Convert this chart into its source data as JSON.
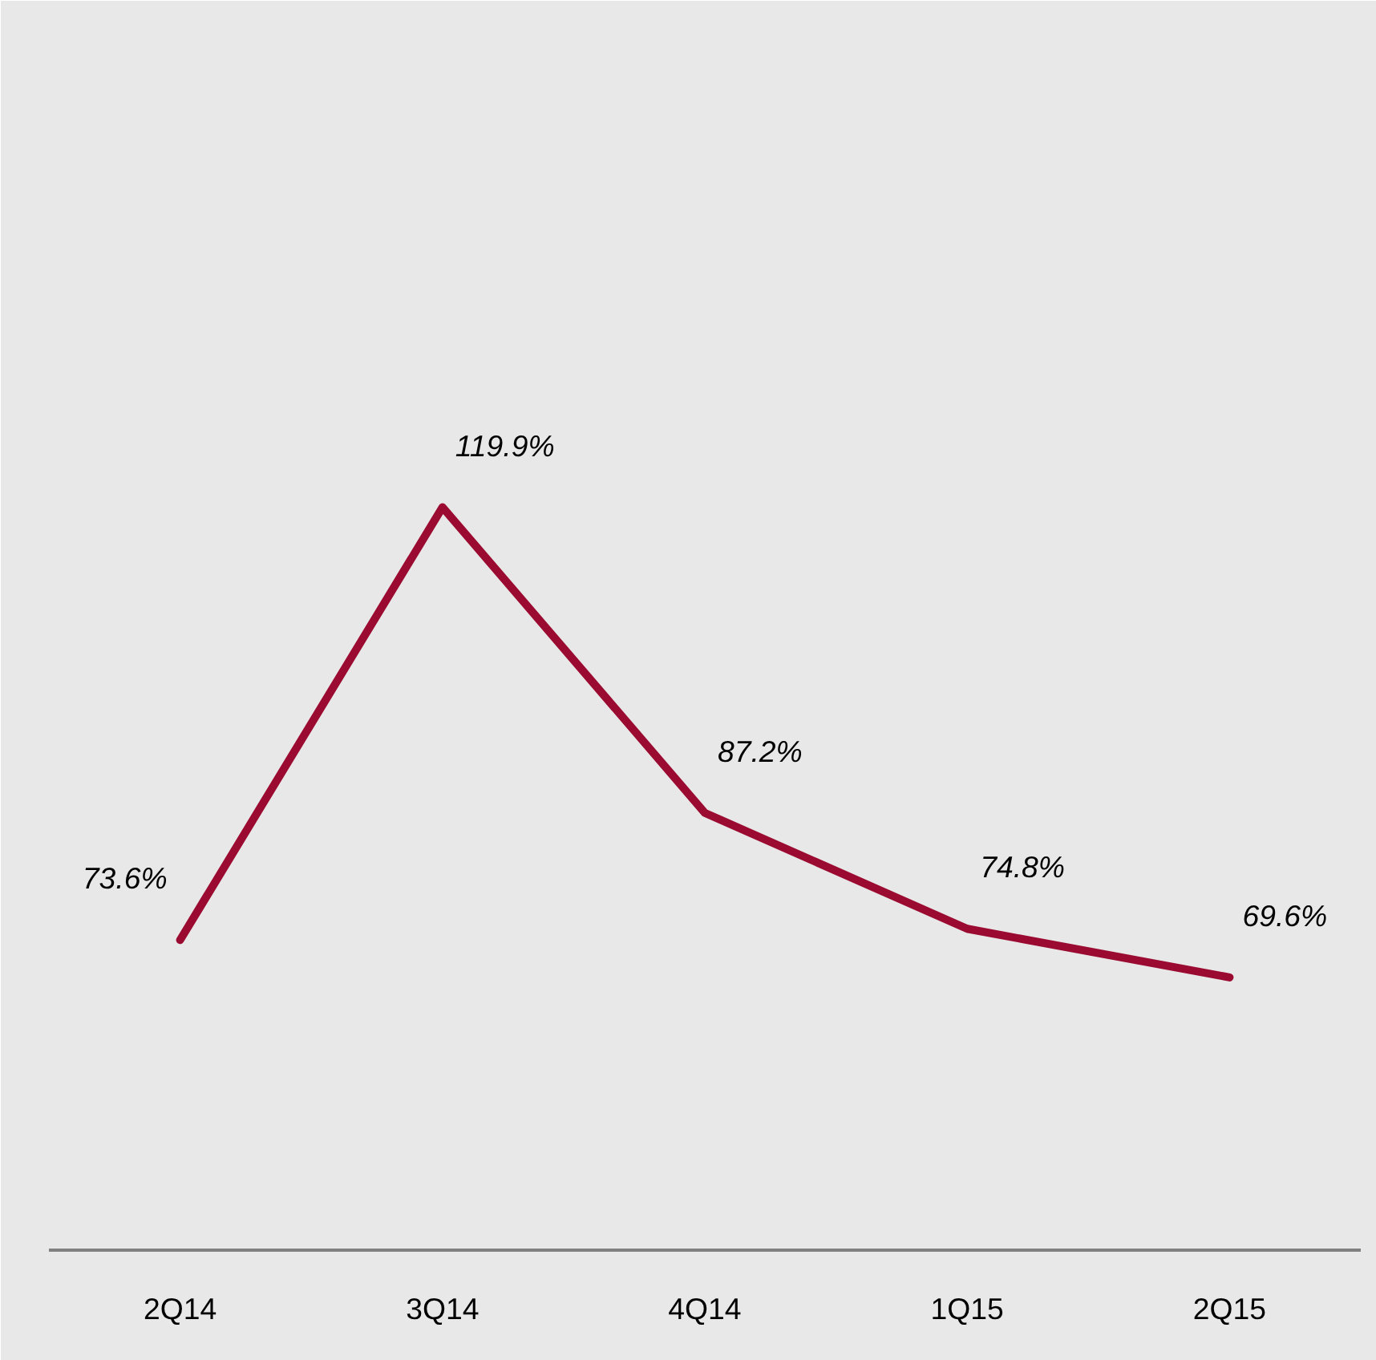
{
  "chart_data": {
    "type": "line",
    "categories": [
      "2Q14",
      "3Q14",
      "4Q14",
      "1Q15",
      "2Q15"
    ],
    "series": [
      {
        "color": "#9b0a30",
        "values": [
          73.6,
          119.9,
          87.2,
          74.8,
          69.6
        ],
        "value_labels": [
          "73.6%",
          "119.9%",
          "87.2%",
          "74.8%",
          "69.6%"
        ]
      }
    ],
    "tick_labels": "x",
    "marker": "none",
    "line_style": "solid"
  }
}
